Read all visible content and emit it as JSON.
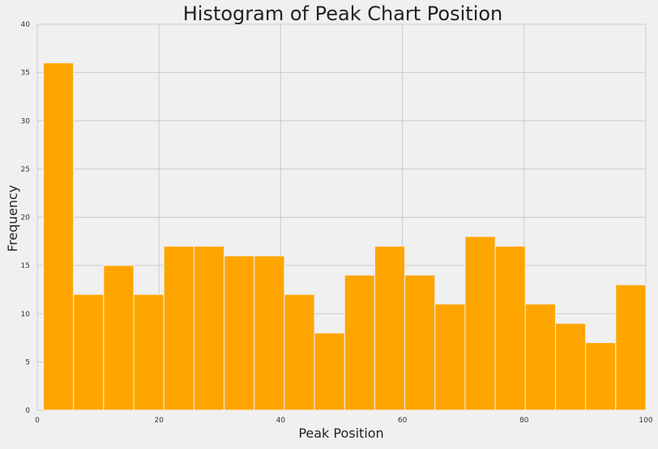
{
  "chart_data": {
    "type": "histogram",
    "title": "Histogram of Peak Chart Position",
    "xlabel": "Peak Position",
    "ylabel": "Frequency",
    "xlim": [
      0,
      100
    ],
    "ylim": [
      0,
      40
    ],
    "x_ticks": [
      0,
      20,
      40,
      60,
      80,
      100
    ],
    "y_ticks": [
      0,
      5,
      10,
      15,
      20,
      25,
      30,
      35,
      40
    ],
    "bin_edges": [
      1,
      5.95,
      10.9,
      15.85,
      20.8,
      25.75,
      30.7,
      35.65,
      40.6,
      45.55,
      50.5,
      55.45,
      60.4,
      65.35,
      70.3,
      75.25,
      80.2,
      85.15,
      90.1,
      95.05,
      100
    ],
    "values": [
      36,
      12,
      15,
      12,
      17,
      17,
      16,
      16,
      12,
      8,
      14,
      17,
      14,
      11,
      18,
      17,
      11,
      9,
      7,
      13
    ],
    "grid": true,
    "colors": {
      "bar": "#ffa500",
      "bar_edge": "#f0f0f0",
      "grid": "#cbcbcb",
      "background": "#f0f0f0"
    }
  }
}
